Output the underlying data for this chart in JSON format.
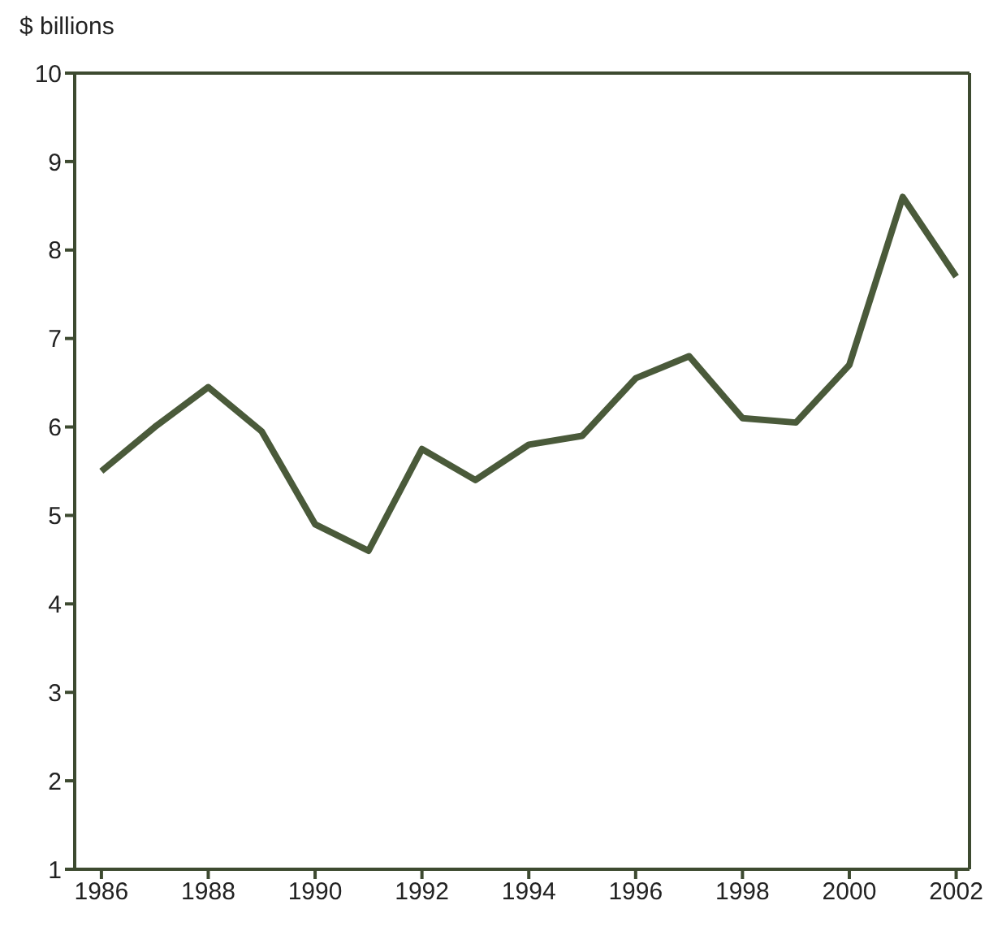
{
  "chart_data": {
    "type": "line",
    "ylabel": "$ billions",
    "x": [
      1986,
      1987,
      1988,
      1989,
      1990,
      1991,
      1992,
      1993,
      1994,
      1995,
      1996,
      1997,
      1998,
      1999,
      2000,
      2001,
      2002
    ],
    "series": [
      {
        "color": "#4a5a3a",
        "values": [
          5.5,
          6.0,
          6.45,
          5.95,
          4.9,
          4.6,
          5.75,
          5.4,
          5.8,
          5.9,
          6.55,
          6.8,
          6.1,
          6.05,
          6.7,
          8.6,
          7.7
        ]
      }
    ],
    "xlim": [
      1985.5,
      2002.25
    ],
    "xticks": [
      1986,
      1988,
      1990,
      1992,
      1994,
      1996,
      1998,
      2000,
      2002
    ],
    "ylim": [
      1,
      10
    ],
    "yticks": [
      1,
      2,
      3,
      4,
      5,
      6,
      7,
      8,
      9,
      10
    ],
    "grid": false,
    "legend": false,
    "marker": "none",
    "line_style": "solid"
  }
}
